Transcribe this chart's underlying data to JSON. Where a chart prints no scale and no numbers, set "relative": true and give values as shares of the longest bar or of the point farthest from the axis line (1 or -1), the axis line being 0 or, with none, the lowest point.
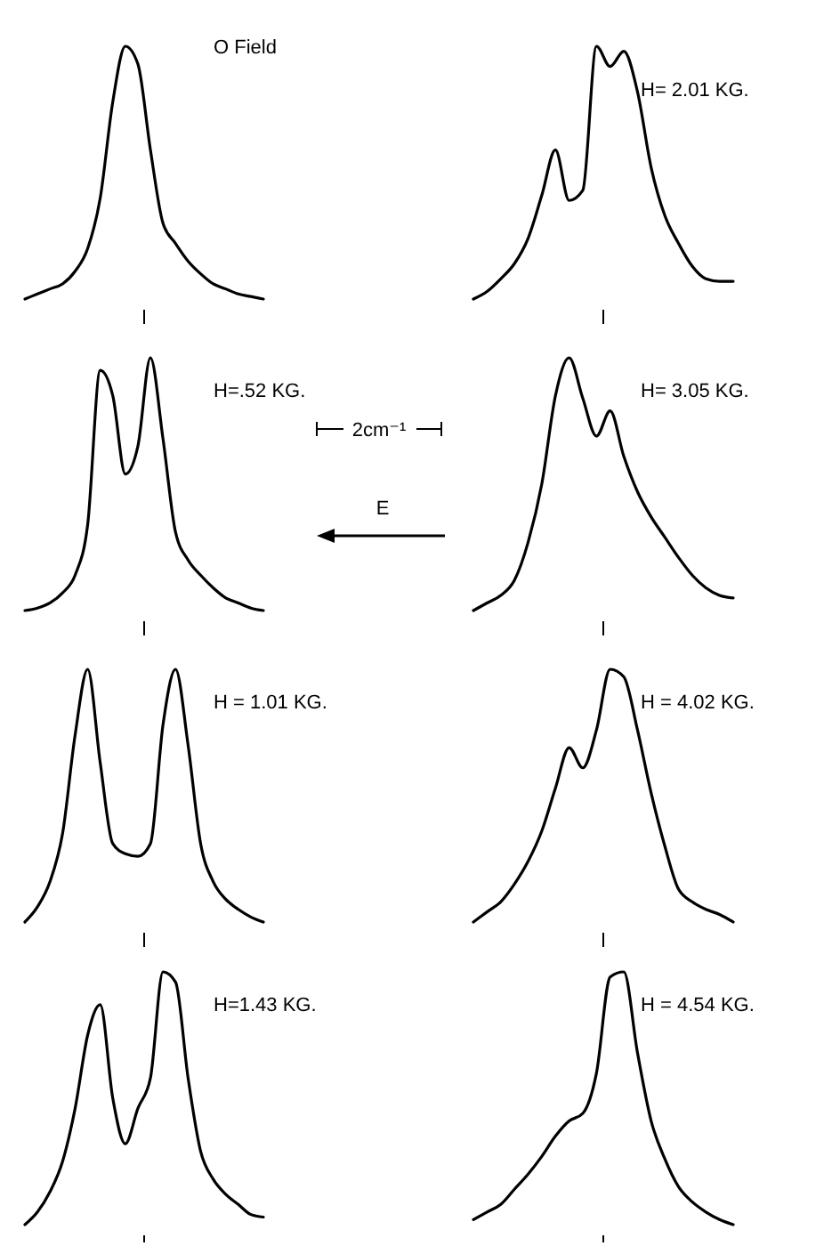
{
  "chart_data": [
    {
      "type": "line",
      "title": "O Field",
      "relative": true,
      "color": "#000000",
      "categories": [
        null,
        null,
        null,
        null,
        null,
        null,
        null,
        null,
        null,
        null,
        null,
        null,
        null,
        null,
        null,
        null,
        null,
        null,
        null,
        null
      ],
      "values": [
        0,
        0.02,
        0.04,
        0.06,
        0.11,
        0.2,
        0.4,
        0.78,
        1,
        0.93,
        0.59,
        0.3,
        0.22,
        0.15,
        0.1,
        0.06,
        0.04,
        0.02,
        0.01,
        0
      ]
    },
    {
      "type": "line",
      "title": "H= 2.01 KG.",
      "relative": true,
      "color": "#000000",
      "categories": [
        null,
        null,
        null,
        null,
        null,
        null,
        null,
        null,
        null,
        null,
        null,
        null,
        null,
        null,
        null,
        null,
        null,
        null,
        null,
        null
      ],
      "values": [
        0,
        0.03,
        0.08,
        0.14,
        0.24,
        0.41,
        0.59,
        0.39,
        0.43,
        1,
        0.92,
        0.98,
        0.82,
        0.52,
        0.33,
        0.22,
        0.13,
        0.08,
        0.07,
        0.07
      ]
    },
    {
      "type": "line",
      "title": "H=.52 KG.",
      "relative": true,
      "color": "#000000",
      "annotations": [
        "2cm⁻¹",
        "E"
      ],
      "categories": [
        null,
        null,
        null,
        null,
        null,
        null,
        null,
        null,
        null,
        null,
        null,
        null,
        null,
        null,
        null,
        null,
        null,
        null,
        null,
        null
      ],
      "values": [
        0,
        0.01,
        0.03,
        0.07,
        0.14,
        0.34,
        0.95,
        0.85,
        0.54,
        0.65,
        1,
        0.68,
        0.31,
        0.2,
        0.14,
        0.09,
        0.05,
        0.03,
        0.01,
        0
      ]
    },
    {
      "type": "line",
      "title": "H= 3.05 KG.",
      "relative": true,
      "color": "#000000",
      "categories": [
        null,
        null,
        null,
        null,
        null,
        null,
        null,
        null,
        null,
        null,
        null,
        null,
        null,
        null,
        null,
        null,
        null,
        null,
        null,
        null
      ],
      "values": [
        0,
        0.03,
        0.06,
        0.12,
        0.27,
        0.5,
        0.85,
        1,
        0.84,
        0.69,
        0.79,
        0.61,
        0.47,
        0.37,
        0.29,
        0.21,
        0.14,
        0.09,
        0.06,
        0.05
      ]
    },
    {
      "type": "line",
      "title": "H = 1.01 KG.",
      "relative": true,
      "color": "#000000",
      "categories": [
        null,
        null,
        null,
        null,
        null,
        null,
        null,
        null,
        null,
        null,
        null,
        null,
        null,
        null,
        null,
        null,
        null,
        null,
        null,
        null
      ],
      "values": [
        0,
        0.06,
        0.16,
        0.35,
        0.74,
        1,
        0.63,
        0.31,
        0.27,
        0.26,
        0.31,
        0.78,
        1,
        0.7,
        0.31,
        0.16,
        0.09,
        0.05,
        0.02,
        0
      ]
    },
    {
      "type": "line",
      "title": "H = 4.02 KG.",
      "relative": true,
      "color": "#000000",
      "categories": [
        null,
        null,
        null,
        null,
        null,
        null,
        null,
        null,
        null,
        null,
        null,
        null,
        null,
        null,
        null,
        null,
        null,
        null,
        null,
        null
      ],
      "values": [
        0,
        0.04,
        0.08,
        0.15,
        0.24,
        0.36,
        0.53,
        0.69,
        0.61,
        0.76,
        1,
        0.97,
        0.76,
        0.51,
        0.3,
        0.13,
        0.08,
        0.05,
        0.03,
        0
      ]
    },
    {
      "type": "line",
      "title": "H=1.43 KG.",
      "relative": true,
      "color": "#000000",
      "categories": [
        null,
        null,
        null,
        null,
        null,
        null,
        null,
        null,
        null,
        null,
        null,
        null,
        null,
        null,
        null,
        null,
        null,
        null,
        null,
        null
      ],
      "values": [
        0,
        0.05,
        0.13,
        0.25,
        0.46,
        0.75,
        0.87,
        0.5,
        0.32,
        0.46,
        0.58,
        1,
        0.96,
        0.58,
        0.29,
        0.18,
        0.12,
        0.08,
        0.04,
        0.03
      ]
    },
    {
      "type": "line",
      "title": "H = 4.54 KG.",
      "relative": true,
      "color": "#000000",
      "categories": [
        null,
        null,
        null,
        null,
        null,
        null,
        null,
        null,
        null,
        null,
        null,
        null,
        null,
        null,
        null,
        null,
        null,
        null,
        null,
        null
      ],
      "values": [
        0.02,
        0.05,
        0.08,
        0.14,
        0.2,
        0.27,
        0.35,
        0.41,
        0.44,
        0.6,
        0.98,
        1,
        0.68,
        0.41,
        0.26,
        0.15,
        0.09,
        0.05,
        0.02,
        0
      ]
    }
  ]
}
